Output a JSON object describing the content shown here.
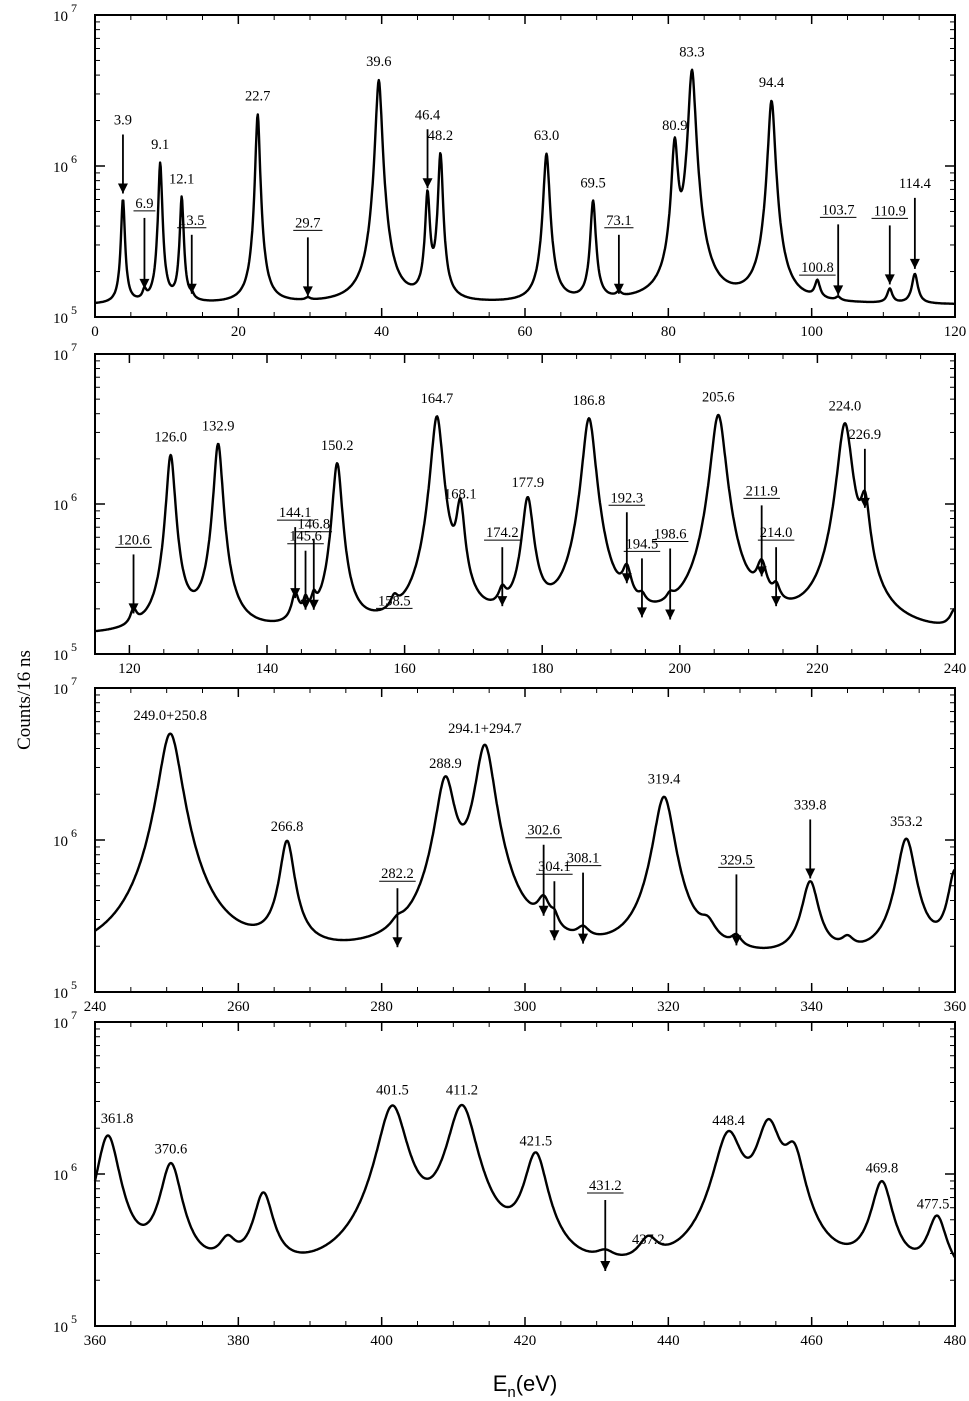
{
  "figure": {
    "ylabel": "Counts/16 ns",
    "xlabel_main": "E",
    "xlabel_sub": "n",
    "xlabel_unit": "(eV)"
  },
  "chart_data": [
    {
      "type": "line",
      "xlim": [
        0,
        120
      ],
      "ylim": [
        100000,
        10000000
      ],
      "yscale": "log",
      "xticks": [
        0,
        20,
        40,
        60,
        80,
        100,
        120
      ],
      "yticks": [
        {
          "base": "10",
          "exp": "5"
        },
        {
          "base": "10",
          "exp": "6"
        },
        {
          "base": "10",
          "exp": "7"
        }
      ],
      "baseline": 120000,
      "peaks": [
        {
          "x": 3.9,
          "y": 600000,
          "w": 0.25,
          "label": "3.9",
          "underline": false,
          "arrow": true
        },
        {
          "x": 6.9,
          "y": 140000,
          "w": 0.3,
          "label": "6.9",
          "underline": true,
          "arrow": true
        },
        {
          "x": 9.1,
          "y": 1050000,
          "w": 0.25,
          "label": "9.1",
          "underline": false,
          "arrow": false
        },
        {
          "x": 12.1,
          "y": 620000,
          "w": 0.25,
          "label": "12.1",
          "underline": false,
          "arrow": false
        },
        {
          "x": 13.5,
          "y": 130000,
          "w": 0.3,
          "label": "13.5",
          "underline": true,
          "arrow": true
        },
        {
          "x": 22.7,
          "y": 2200000,
          "w": 0.28,
          "label": "22.7",
          "underline": false,
          "arrow": false
        },
        {
          "x": 29.7,
          "y": 125000,
          "w": 0.4,
          "label": "29.7",
          "underline": true,
          "arrow": true
        },
        {
          "x": 39.6,
          "y": 3700000,
          "w": 0.4,
          "label": "39.6",
          "underline": false,
          "arrow": false
        },
        {
          "x": 46.4,
          "y": 650000,
          "w": 0.3,
          "label": "46.4",
          "underline": false,
          "arrow": true
        },
        {
          "x": 48.2,
          "y": 1200000,
          "w": 0.3,
          "label": "48.2",
          "underline": false,
          "arrow": false
        },
        {
          "x": 63.0,
          "y": 1200000,
          "w": 0.4,
          "label": "63.0",
          "underline": false,
          "arrow": false
        },
        {
          "x": 69.5,
          "y": 580000,
          "w": 0.35,
          "label": "69.5",
          "underline": false,
          "arrow": false
        },
        {
          "x": 73.1,
          "y": 130000,
          "w": 0.4,
          "label": "73.1",
          "underline": true,
          "arrow": true
        },
        {
          "x": 80.9,
          "y": 1400000,
          "w": 0.4,
          "label": "80.9",
          "underline": false,
          "arrow": false
        },
        {
          "x": 83.3,
          "y": 4300000,
          "w": 0.45,
          "label": "83.3",
          "underline": false,
          "arrow": false
        },
        {
          "x": 94.4,
          "y": 2700000,
          "w": 0.45,
          "label": "94.4",
          "underline": false,
          "arrow": false
        },
        {
          "x": 100.8,
          "y": 160000,
          "w": 0.4,
          "label": "100.8",
          "underline": true,
          "arrow": false
        },
        {
          "x": 103.7,
          "y": 127000,
          "w": 0.4,
          "label": "103.7",
          "underline": true,
          "arrow": true
        },
        {
          "x": 110.9,
          "y": 150000,
          "w": 0.4,
          "label": "110.9",
          "underline": true,
          "arrow": true
        },
        {
          "x": 114.4,
          "y": 190000,
          "w": 0.45,
          "label": "114.4",
          "underline": false,
          "arrow": true
        }
      ]
    },
    {
      "type": "line",
      "xlim": [
        115,
        240
      ],
      "ylim": [
        100000,
        10000000
      ],
      "yscale": "log",
      "xticks": [
        120,
        140,
        160,
        180,
        200,
        220,
        240
      ],
      "yticks": [
        {
          "base": "10",
          "exp": "5"
        },
        {
          "base": "10",
          "exp": "6"
        },
        {
          "base": "10",
          "exp": "7"
        }
      ],
      "baseline": 130000,
      "peaks": [
        {
          "x": 120.6,
          "y": 170000,
          "w": 0.5,
          "label": "120.6",
          "underline": true,
          "arrow": true
        },
        {
          "x": 126.0,
          "y": 2100000,
          "w": 0.6,
          "label": "126.0",
          "underline": false,
          "arrow": false
        },
        {
          "x": 132.9,
          "y": 2500000,
          "w": 0.6,
          "label": "132.9",
          "underline": false,
          "arrow": false
        },
        {
          "x": 144.1,
          "y": 215000,
          "w": 0.6,
          "label": "144.1",
          "underline": true,
          "arrow": true
        },
        {
          "x": 145.6,
          "y": 180000,
          "w": 0.4,
          "label": "145.6",
          "underline": true,
          "arrow": true
        },
        {
          "x": 146.8,
          "y": 180000,
          "w": 0.4,
          "label": "146.8",
          "underline": true,
          "arrow": true
        },
        {
          "x": 150.2,
          "y": 1850000,
          "w": 0.65,
          "label": "150.2",
          "underline": false,
          "arrow": false
        },
        {
          "x": 158.5,
          "y": 170000,
          "w": 0.6,
          "label": "158.5",
          "underline": true,
          "arrow": false
        },
        {
          "x": 164.7,
          "y": 3800000,
          "w": 0.8,
          "label": "164.7",
          "underline": false,
          "arrow": false
        },
        {
          "x": 168.1,
          "y": 880000,
          "w": 0.6,
          "label": "168.1",
          "underline": false,
          "arrow": false
        },
        {
          "x": 174.2,
          "y": 190000,
          "w": 0.6,
          "label": "174.2",
          "underline": true,
          "arrow": true
        },
        {
          "x": 177.9,
          "y": 1050000,
          "w": 0.8,
          "label": "177.9",
          "underline": false,
          "arrow": false
        },
        {
          "x": 186.8,
          "y": 3700000,
          "w": 0.9,
          "label": "186.8",
          "underline": false,
          "arrow": false
        },
        {
          "x": 192.3,
          "y": 270000,
          "w": 0.7,
          "label": "192.3",
          "underline": true,
          "arrow": true
        },
        {
          "x": 194.5,
          "y": 160000,
          "w": 0.6,
          "label": "194.5",
          "underline": true,
          "arrow": true
        },
        {
          "x": 198.6,
          "y": 155000,
          "w": 0.6,
          "label": "198.6",
          "underline": true,
          "arrow": true
        },
        {
          "x": 205.6,
          "y": 3900000,
          "w": 1.0,
          "label": "205.6",
          "underline": false,
          "arrow": false
        },
        {
          "x": 211.9,
          "y": 300000,
          "w": 0.8,
          "label": "211.9",
          "underline": true,
          "arrow": true
        },
        {
          "x": 214.0,
          "y": 190000,
          "w": 0.6,
          "label": "214.0",
          "underline": true,
          "arrow": true
        },
        {
          "x": 224.0,
          "y": 3400000,
          "w": 1.0,
          "label": "224.0",
          "underline": false,
          "arrow": false
        },
        {
          "x": 226.9,
          "y": 860000,
          "w": 0.7,
          "label": "226.9",
          "underline": false,
          "arrow": true
        },
        {
          "x": 240.0,
          "y": 180000,
          "w": 0.8,
          "label": "",
          "underline": false,
          "arrow": false
        }
      ]
    },
    {
      "type": "line",
      "xlim": [
        240,
        360
      ],
      "ylim": [
        100000,
        10000000
      ],
      "yscale": "log",
      "xticks": [
        240,
        260,
        280,
        300,
        320,
        340,
        360
      ],
      "yticks": [
        {
          "base": "10",
          "exp": "5"
        },
        {
          "base": "10",
          "exp": "6"
        },
        {
          "base": "10",
          "exp": "7"
        }
      ],
      "baseline": 150000,
      "peaks": [
        {
          "x": 250.5,
          "y": 5000000,
          "w": 1.5,
          "label": "249.0+250.8",
          "underline": false,
          "arrow": false
        },
        {
          "x": 266.8,
          "y": 930000,
          "w": 1.0,
          "label": "266.8",
          "underline": false,
          "arrow": false
        },
        {
          "x": 282.2,
          "y": 180000,
          "w": 1.0,
          "label": "282.2",
          "underline": true,
          "arrow": true
        },
        {
          "x": 288.9,
          "y": 2400000,
          "w": 1.3,
          "label": "288.9",
          "underline": false,
          "arrow": false
        },
        {
          "x": 294.4,
          "y": 4100000,
          "w": 1.3,
          "label": "294.1+294.7",
          "underline": false,
          "arrow": false
        },
        {
          "x": 302.6,
          "y": 290000,
          "w": 1.0,
          "label": "302.6",
          "underline": true,
          "arrow": true
        },
        {
          "x": 304.1,
          "y": 200000,
          "w": 0.6,
          "label": "304.1",
          "underline": true,
          "arrow": true
        },
        {
          "x": 308.1,
          "y": 190000,
          "w": 1.0,
          "label": "308.1",
          "underline": true,
          "arrow": true
        },
        {
          "x": 319.4,
          "y": 1900000,
          "w": 1.4,
          "label": "319.4",
          "underline": false,
          "arrow": false
        },
        {
          "x": 325.5,
          "y": 210000,
          "w": 1.2,
          "label": "",
          "underline": false,
          "arrow": false
        },
        {
          "x": 329.5,
          "y": 185000,
          "w": 0.8,
          "label": "329.5",
          "underline": true,
          "arrow": true
        },
        {
          "x": 339.8,
          "y": 510000,
          "w": 1.2,
          "label": "339.8",
          "underline": false,
          "arrow": true
        },
        {
          "x": 345.0,
          "y": 185000,
          "w": 1.0,
          "label": "",
          "underline": false,
          "arrow": false
        },
        {
          "x": 353.2,
          "y": 1000000,
          "w": 1.3,
          "label": "353.2",
          "underline": false,
          "arrow": false
        },
        {
          "x": 360.0,
          "y": 600000,
          "w": 1.0,
          "label": "",
          "underline": false,
          "arrow": false
        }
      ]
    },
    {
      "type": "line",
      "xlim": [
        360,
        480
      ],
      "ylim": [
        100000,
        10000000
      ],
      "yscale": "log",
      "xticks": [
        360,
        380,
        400,
        420,
        440,
        460,
        480
      ],
      "yticks": [
        {
          "base": "10",
          "exp": "5"
        },
        {
          "base": "10",
          "exp": "6"
        },
        {
          "base": "10",
          "exp": "7"
        }
      ],
      "baseline": 170000,
      "peaks": [
        {
          "x": 361.8,
          "y": 1750000,
          "w": 1.6,
          "label": "361.8",
          "underline": false,
          "arrow": false
        },
        {
          "x": 370.6,
          "y": 1100000,
          "w": 1.5,
          "label": "370.6",
          "underline": false,
          "arrow": false
        },
        {
          "x": 378.5,
          "y": 280000,
          "w": 1.3,
          "label": "",
          "underline": false,
          "arrow": false
        },
        {
          "x": 383.5,
          "y": 680000,
          "w": 1.4,
          "label": "",
          "underline": false,
          "arrow": false
        },
        {
          "x": 401.5,
          "y": 2700000,
          "w": 2.0,
          "label": "401.5",
          "underline": false,
          "arrow": false
        },
        {
          "x": 411.2,
          "y": 2700000,
          "w": 2.0,
          "label": "411.2",
          "underline": false,
          "arrow": false
        },
        {
          "x": 421.5,
          "y": 1250000,
          "w": 1.6,
          "label": "421.5",
          "underline": false,
          "arrow": false
        },
        {
          "x": 431.2,
          "y": 210000,
          "w": 1.5,
          "label": "431.2",
          "underline": true,
          "arrow": true
        },
        {
          "x": 437.2,
          "y": 280000,
          "w": 1.5,
          "label": "437.2",
          "underline": false,
          "arrow": false
        },
        {
          "x": 448.4,
          "y": 1700000,
          "w": 2.0,
          "label": "448.4",
          "underline": false,
          "arrow": false
        },
        {
          "x": 454.0,
          "y": 1950000,
          "w": 1.8,
          "label": "",
          "underline": false,
          "arrow": false
        },
        {
          "x": 457.5,
          "y": 1150000,
          "w": 1.5,
          "label": "",
          "underline": false,
          "arrow": false
        },
        {
          "x": 469.8,
          "y": 830000,
          "w": 1.5,
          "label": "469.8",
          "underline": false,
          "arrow": false
        },
        {
          "x": 477.5,
          "y": 480000,
          "w": 1.4,
          "label": "477.5",
          "underline": false,
          "arrow": false
        }
      ]
    }
  ]
}
